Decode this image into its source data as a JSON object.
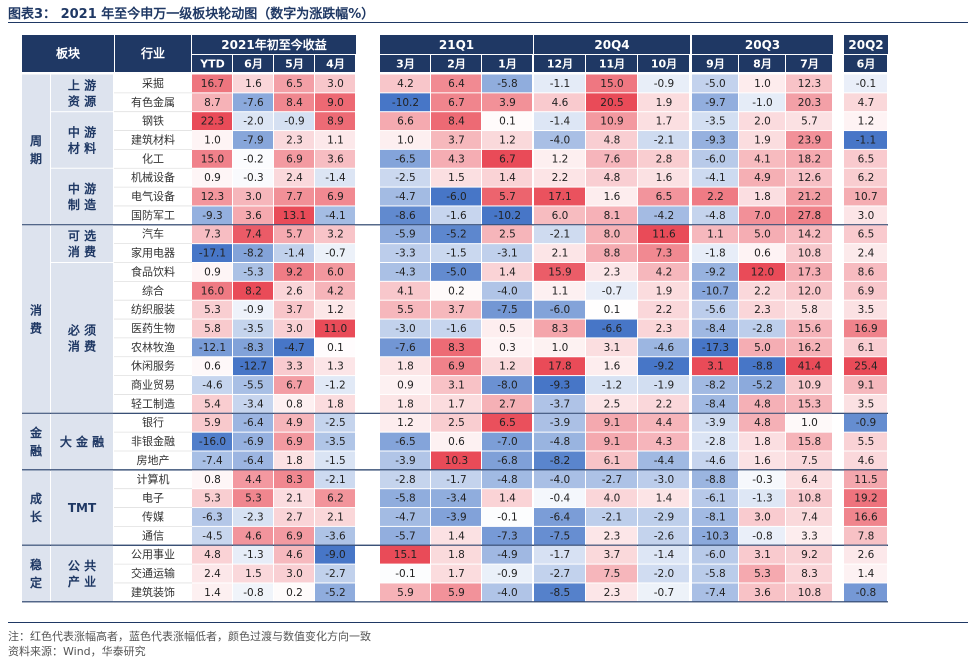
{
  "title": "图表3： 2021 年至今申万一级板块轮动图（数字为涨跌幅%）",
  "note": "注：红色代表涨幅高者，蓝色代表涨幅低者，颜色过渡与数值变化方向一致",
  "source": "资料来源：Wind，华泰研究",
  "colors": {
    "header": "#1f3864",
    "high": "#e8424f",
    "low": "#3d6fc4",
    "neutral": "#ffffff"
  },
  "chart_data": {
    "type": "table",
    "header": {
      "col1": "板块",
      "col2": "行业",
      "groups": [
        "2021年初至今收益",
        "21Q1",
        "20Q4",
        "20Q3",
        "20Q2"
      ],
      "subheaders": [
        "YTD",
        "6月",
        "5月",
        "4月",
        "3月",
        "2月",
        "1月",
        "12月",
        "11月",
        "10月",
        "9月",
        "8月",
        "7月",
        "6月"
      ]
    },
    "sectors": [
      {
        "name": "周期",
        "subgroups": [
          {
            "name": "上游资源",
            "rows": [
              {
                "industry": "采掘",
                "values": [
                  16.7,
                  1.6,
                  6.5,
                  3.0,
                  4.2,
                  6.4,
                  -5.8,
                  -1.1,
                  15.0,
                  -0.9,
                  -5.0,
                  1.0,
                  12.3,
                  -0.1
                ]
              },
              {
                "industry": "有色金属",
                "values": [
                  8.7,
                  -7.6,
                  8.4,
                  9.0,
                  -10.2,
                  6.7,
                  3.9,
                  4.6,
                  20.5,
                  1.9,
                  -9.7,
                  -1.0,
                  20.3,
                  4.7
                ]
              }
            ]
          },
          {
            "name": "中游材料",
            "rows": [
              {
                "industry": "钢铁",
                "values": [
                  22.3,
                  -2.0,
                  -0.9,
                  8.9,
                  6.6,
                  8.4,
                  0.1,
                  -1.4,
                  10.9,
                  1.7,
                  -3.5,
                  2.0,
                  5.7,
                  1.2
                ]
              },
              {
                "industry": "建筑材料",
                "values": [
                  1.0,
                  -7.9,
                  2.3,
                  1.1,
                  1.0,
                  3.7,
                  1.2,
                  -4.0,
                  4.8,
                  -2.1,
                  -9.3,
                  1.9,
                  23.9,
                  -1.1
                ]
              },
              {
                "industry": "化工",
                "values": [
                  15.0,
                  -0.2,
                  6.9,
                  3.6,
                  -6.5,
                  4.3,
                  6.7,
                  1.2,
                  7.6,
                  2.8,
                  -6.0,
                  4.1,
                  18.2,
                  6.5
                ]
              }
            ]
          },
          {
            "name": "中游制造",
            "rows": [
              {
                "industry": "机械设备",
                "values": [
                  0.9,
                  -0.3,
                  2.4,
                  -1.4,
                  -2.5,
                  1.5,
                  1.4,
                  2.2,
                  4.8,
                  1.6,
                  -4.1,
                  4.9,
                  12.6,
                  6.2
                ]
              },
              {
                "industry": "电气设备",
                "values": [
                  12.3,
                  3.0,
                  7.7,
                  6.9,
                  -4.7,
                  -6.0,
                  5.7,
                  17.1,
                  1.6,
                  6.5,
                  2.2,
                  1.8,
                  21.2,
                  10.7
                ]
              },
              {
                "industry": "国防军工",
                "values": [
                  -9.3,
                  3.6,
                  13.1,
                  -4.1,
                  -8.6,
                  -1.6,
                  -10.2,
                  6.0,
                  8.1,
                  -4.2,
                  -4.8,
                  7.0,
                  27.8,
                  3.0
                ]
              }
            ]
          }
        ]
      },
      {
        "name": "消费",
        "subgroups": [
          {
            "name": "可选消费",
            "rows": [
              {
                "industry": "汽车",
                "values": [
                  7.3,
                  7.4,
                  5.7,
                  3.2,
                  -5.9,
                  -5.2,
                  2.5,
                  -2.1,
                  8.0,
                  11.6,
                  1.1,
                  5.0,
                  14.2,
                  6.5
                ]
              },
              {
                "industry": "家用电器",
                "values": [
                  -17.1,
                  -8.2,
                  -1.4,
                  -0.7,
                  -3.3,
                  -1.5,
                  -3.1,
                  2.1,
                  8.8,
                  7.3,
                  -1.8,
                  0.6,
                  10.8,
                  2.4
                ]
              }
            ]
          },
          {
            "name": "必须消费",
            "rows": [
              {
                "industry": "食品饮料",
                "values": [
                  0.9,
                  -5.3,
                  9.2,
                  6.0,
                  -4.3,
                  -5.0,
                  1.4,
                  15.9,
                  2.3,
                  4.2,
                  -9.2,
                  12.0,
                  17.3,
                  8.6
                ]
              },
              {
                "industry": "综合",
                "values": [
                  16.0,
                  8.2,
                  2.6,
                  4.2,
                  4.1,
                  0.2,
                  -4.0,
                  1.1,
                  -0.7,
                  1.9,
                  -10.7,
                  2.2,
                  12.0,
                  6.9
                ]
              },
              {
                "industry": "纺织服装",
                "values": [
                  5.3,
                  -0.9,
                  3.7,
                  1.2,
                  5.5,
                  3.7,
                  -7.5,
                  -6.0,
                  0.1,
                  2.2,
                  -5.6,
                  2.3,
                  5.8,
                  3.5
                ]
              },
              {
                "industry": "医药生物",
                "values": [
                  5.8,
                  -3.5,
                  3.0,
                  11.0,
                  -3.0,
                  -1.6,
                  0.5,
                  8.3,
                  -6.6,
                  2.3,
                  -8.4,
                  -2.8,
                  15.6,
                  16.9
                ]
              },
              {
                "industry": "农林牧渔",
                "values": [
                  -12.1,
                  -8.3,
                  -4.7,
                  0.1,
                  -7.6,
                  8.3,
                  0.3,
                  1.0,
                  3.1,
                  -4.6,
                  -17.3,
                  5.0,
                  16.2,
                  6.1
                ]
              },
              {
                "industry": "休闲服务",
                "values": [
                  0.6,
                  -12.7,
                  3.3,
                  1.3,
                  1.8,
                  6.9,
                  1.2,
                  17.8,
                  1.6,
                  -9.2,
                  3.1,
                  -8.8,
                  41.4,
                  25.4
                ]
              },
              {
                "industry": "商业贸易",
                "values": [
                  -4.6,
                  -5.5,
                  6.7,
                  -1.2,
                  0.9,
                  3.1,
                  -8.0,
                  -9.3,
                  -1.2,
                  -1.9,
                  -8.2,
                  -5.2,
                  10.9,
                  9.1
                ]
              },
              {
                "industry": "轻工制造",
                "values": [
                  5.4,
                  -3.4,
                  0.8,
                  1.8,
                  1.8,
                  1.7,
                  2.7,
                  -3.7,
                  2.5,
                  2.2,
                  -8.4,
                  4.8,
                  15.3,
                  3.5
                ]
              }
            ]
          }
        ]
      },
      {
        "name": "金融",
        "subgroups": [
          {
            "name": "大金融",
            "rows": [
              {
                "industry": "银行",
                "values": [
                  5.9,
                  -6.4,
                  4.9,
                  -2.5,
                  1.2,
                  2.5,
                  6.5,
                  -3.9,
                  9.1,
                  4.4,
                  -3.9,
                  4.8,
                  1.0,
                  -0.9
                ]
              },
              {
                "industry": "非银金融",
                "values": [
                  -16.0,
                  -6.9,
                  6.9,
                  -3.5,
                  -6.5,
                  0.6,
                  -7.0,
                  -4.8,
                  9.1,
                  4.3,
                  -2.8,
                  1.8,
                  15.8,
                  5.5
                ]
              },
              {
                "industry": "房地产",
                "values": [
                  -7.4,
                  -6.4,
                  1.8,
                  -1.5,
                  -3.9,
                  10.3,
                  -6.8,
                  -8.2,
                  6.1,
                  -4.4,
                  -4.6,
                  1.6,
                  7.5,
                  4.6
                ]
              }
            ]
          }
        ]
      },
      {
        "name": "成长",
        "subgroups": [
          {
            "name": "TMT",
            "rows": [
              {
                "industry": "计算机",
                "values": [
                  0.8,
                  4.4,
                  8.3,
                  -2.1,
                  -2.8,
                  -1.7,
                  -4.8,
                  -4.0,
                  -2.7,
                  -3.0,
                  -8.8,
                  -0.3,
                  6.4,
                  11.5
                ]
              },
              {
                "industry": "电子",
                "values": [
                  5.3,
                  5.3,
                  2.1,
                  6.2,
                  -5.8,
                  -3.4,
                  1.4,
                  -0.4,
                  4.0,
                  1.4,
                  -6.1,
                  -1.3,
                  10.8,
                  19.2
                ]
              },
              {
                "industry": "传媒",
                "values": [
                  -6.3,
                  -2.3,
                  2.7,
                  2.1,
                  -4.7,
                  -3.9,
                  -0.1,
                  -6.4,
                  -2.1,
                  -2.9,
                  -8.1,
                  3.0,
                  7.4,
                  16.6
                ]
              },
              {
                "industry": "通信",
                "values": [
                  -4.5,
                  4.6,
                  6.9,
                  -3.6,
                  -5.7,
                  1.4,
                  -7.3,
                  -7.5,
                  2.3,
                  -2.6,
                  -10.3,
                  -0.8,
                  3.3,
                  7.8
                ]
              }
            ]
          }
        ]
      },
      {
        "name": "稳定",
        "subgroups": [
          {
            "name": "公共产业",
            "rows": [
              {
                "industry": "公用事业",
                "values": [
                  4.8,
                  -1.3,
                  4.6,
                  -9.0,
                  15.1,
                  1.8,
                  -4.9,
                  -1.7,
                  3.7,
                  -1.4,
                  -6.0,
                  3.1,
                  9.2,
                  2.6
                ]
              },
              {
                "industry": "交通运输",
                "values": [
                  2.4,
                  1.5,
                  3.0,
                  -2.7,
                  -0.1,
                  1.7,
                  -0.9,
                  -2.7,
                  7.5,
                  -2.0,
                  -5.8,
                  5.3,
                  8.3,
                  1.4
                ]
              },
              {
                "industry": "建筑装饰",
                "values": [
                  1.4,
                  -0.8,
                  0.2,
                  -5.2,
                  5.9,
                  5.9,
                  -4.0,
                  -8.5,
                  2.3,
                  -0.7,
                  -7.4,
                  3.6,
                  10.8,
                  -0.8
                ]
              }
            ]
          }
        ]
      }
    ]
  }
}
